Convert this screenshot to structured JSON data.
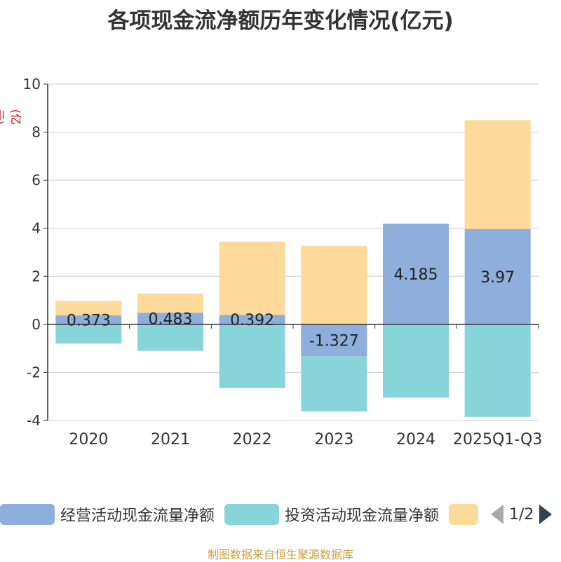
{
  "chart_data": {
    "type": "bar",
    "stacked": true,
    "title": "各项现金流净额历年变化情况(亿元)",
    "ylabel": "(亿元)",
    "ylim": [
      -4,
      10
    ],
    "yticks": [
      10,
      8,
      6,
      4,
      2,
      0,
      -2,
      -4
    ],
    "categories": [
      "2020",
      "2021",
      "2022",
      "2023",
      "2024",
      "2025Q1-Q3"
    ],
    "series": [
      {
        "name": "经营活动现金流量净额",
        "color": "#8eaedb",
        "values": [
          0.373,
          0.483,
          0.392,
          -1.327,
          4.185,
          3.97
        ],
        "labels": [
          "0.373",
          "0.483",
          "0.392",
          "-1.327",
          "4.185",
          "3.97"
        ]
      },
      {
        "name": "投资活动现金流量净额",
        "color": "#87d5d8",
        "values": [
          -0.8,
          -1.1,
          -2.65,
          -2.3,
          -3.05,
          -3.85
        ]
      },
      {
        "name": "",
        "color": "#fdd99a",
        "values": [
          0.6,
          0.8,
          3.05,
          3.27,
          0.0,
          4.53
        ]
      }
    ]
  },
  "legend": {
    "items": [
      {
        "label": "经营活动现金流量净额",
        "color": "#8eaedb"
      },
      {
        "label": "投资活动现金流量净额",
        "color": "#87d5d8"
      },
      {
        "label": "",
        "color": "#fdd99a"
      }
    ],
    "page": "1/2"
  },
  "footer": {
    "source": "制图数据来自恒生聚源数据库"
  }
}
